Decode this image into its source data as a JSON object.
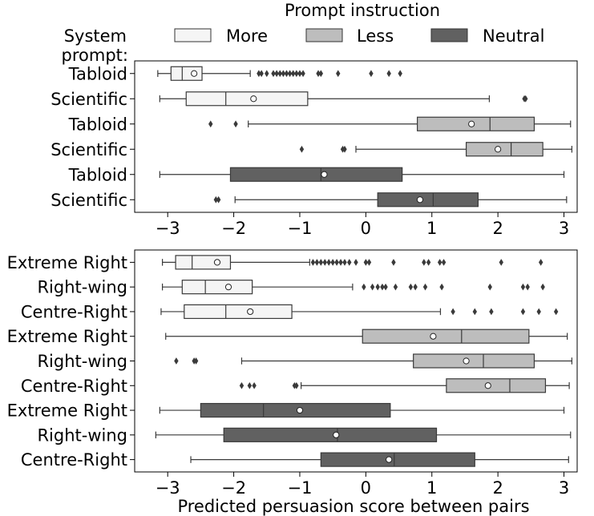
{
  "legend": {
    "title": "Prompt instruction",
    "system_prompt_label_line1": "System",
    "system_prompt_label_line2": "prompt:",
    "entries": [
      {
        "name": "More",
        "color": "#f5f5f5"
      },
      {
        "name": "Less",
        "color": "#bdbdbd"
      },
      {
        "name": "Neutral",
        "color": "#616161"
      }
    ]
  },
  "chart_data": [
    {
      "type": "box",
      "orientation": "horizontal",
      "xlim": [
        -3.5,
        3.2
      ],
      "xticks": [
        -3,
        -2,
        -1,
        0,
        1,
        2,
        3
      ],
      "xtick_labels": [
        "−3",
        "−2",
        "−1",
        "0",
        "1",
        "2",
        "3"
      ],
      "xlabel": "",
      "categories": [
        "Tabloid",
        "Scientific",
        "Tabloid",
        "Scientific",
        "Tabloid",
        "Scientific"
      ],
      "groups": [
        "More",
        "More",
        "Less",
        "Less",
        "Neutral",
        "Neutral"
      ],
      "boxes": [
        {
          "whislo": -3.15,
          "q1": -2.95,
          "med": -2.78,
          "q3": -2.48,
          "whishi": -1.75,
          "mean": -2.6,
          "fliers": [
            -1.62,
            -1.58,
            -1.5,
            -1.4,
            -1.35,
            -1.3,
            -1.25,
            -1.2,
            -1.15,
            -1.1,
            -1.05,
            -1.0,
            -0.95,
            -0.72,
            -0.68,
            -0.42,
            0.08,
            0.35,
            0.52
          ]
        },
        {
          "whislo": -3.12,
          "q1": -2.72,
          "med": -2.12,
          "q3": -0.88,
          "whishi": 1.87,
          "mean": -1.7,
          "fliers": [
            2.4,
            2.42
          ]
        },
        {
          "whislo": -1.78,
          "q1": 0.78,
          "med": 1.88,
          "q3": 2.55,
          "whishi": 3.1,
          "mean": 1.6,
          "fliers": [
            -2.35,
            -1.97
          ]
        },
        {
          "whislo": -0.15,
          "q1": 1.52,
          "med": 2.2,
          "q3": 2.68,
          "whishi": 3.12,
          "mean": 2.0,
          "fliers": [
            -0.97,
            -0.35,
            -0.32
          ]
        },
        {
          "whislo": -3.12,
          "q1": -2.05,
          "med": -0.68,
          "q3": 0.55,
          "whishi": 3.0,
          "mean": -0.63,
          "fliers": []
        },
        {
          "whislo": -1.98,
          "q1": 0.18,
          "med": 1.02,
          "q3": 1.7,
          "whishi": 3.04,
          "mean": 0.82,
          "fliers": [
            -2.27,
            -2.23
          ]
        }
      ]
    },
    {
      "type": "box",
      "orientation": "horizontal",
      "xlim": [
        -3.5,
        3.2
      ],
      "xticks": [
        -3,
        -2,
        -1,
        0,
        1,
        2,
        3
      ],
      "xtick_labels": [
        "−3",
        "−2",
        "−1",
        "0",
        "1",
        "2",
        "3"
      ],
      "xlabel": "Predicted persuasion score between pairs",
      "categories": [
        "Extreme Right",
        "Right-wing",
        "Centre-Right",
        "Extreme Right",
        "Right-wing",
        "Centre-Right",
        "Extreme Right",
        "Right-wing",
        "Centre-Right"
      ],
      "groups": [
        "More",
        "More",
        "More",
        "Less",
        "Less",
        "Less",
        "Neutral",
        "Neutral",
        "Neutral"
      ],
      "boxes": [
        {
          "whislo": -3.08,
          "q1": -2.88,
          "med": -2.63,
          "q3": -2.05,
          "whishi": -0.85,
          "mean": -2.25,
          "fliers": [
            -0.8,
            -0.74,
            -0.68,
            -0.62,
            -0.56,
            -0.5,
            -0.44,
            -0.38,
            -0.32,
            -0.25,
            -0.15,
            0.0,
            0.05,
            0.42,
            0.88,
            0.95,
            1.12,
            1.18,
            2.05,
            2.65
          ]
        },
        {
          "whislo": -3.08,
          "q1": -2.78,
          "med": -2.43,
          "q3": -1.72,
          "whishi": -0.2,
          "mean": -2.08,
          "fliers": [
            -0.03,
            0.1,
            0.18,
            0.25,
            0.3,
            0.45,
            0.68,
            0.75,
            0.9,
            1.15,
            1.88,
            2.38,
            2.45,
            2.68
          ]
        },
        {
          "whislo": -3.1,
          "q1": -2.75,
          "med": -2.12,
          "q3": -1.12,
          "whishi": 1.13,
          "mean": -1.75,
          "fliers": [
            1.32,
            1.65,
            1.9,
            2.38,
            2.62,
            2.88
          ]
        },
        {
          "whislo": -3.03,
          "q1": -0.05,
          "med": 1.45,
          "q3": 2.47,
          "whishi": 3.05,
          "mean": 1.02,
          "fliers": []
        },
        {
          "whislo": -1.88,
          "q1": 0.72,
          "med": 1.78,
          "q3": 2.55,
          "whishi": 3.12,
          "mean": 1.52,
          "fliers": [
            -2.87,
            -2.6,
            -2.57
          ]
        },
        {
          "whislo": -0.98,
          "q1": 1.22,
          "med": 2.18,
          "q3": 2.72,
          "whishi": 3.08,
          "mean": 1.85,
          "fliers": [
            -1.88,
            -1.76,
            -1.69,
            -1.08,
            -1.05
          ]
        },
        {
          "whislo": -3.12,
          "q1": -2.5,
          "med": -1.55,
          "q3": 0.37,
          "whishi": 3.0,
          "mean": -1.0,
          "fliers": []
        },
        {
          "whislo": -3.18,
          "q1": -2.15,
          "med": -0.43,
          "q3": 1.07,
          "whishi": 3.1,
          "mean": -0.45,
          "fliers": []
        },
        {
          "whislo": -2.65,
          "q1": -0.68,
          "med": 0.43,
          "q3": 1.65,
          "whishi": 3.07,
          "mean": 0.35,
          "fliers": []
        }
      ]
    }
  ]
}
